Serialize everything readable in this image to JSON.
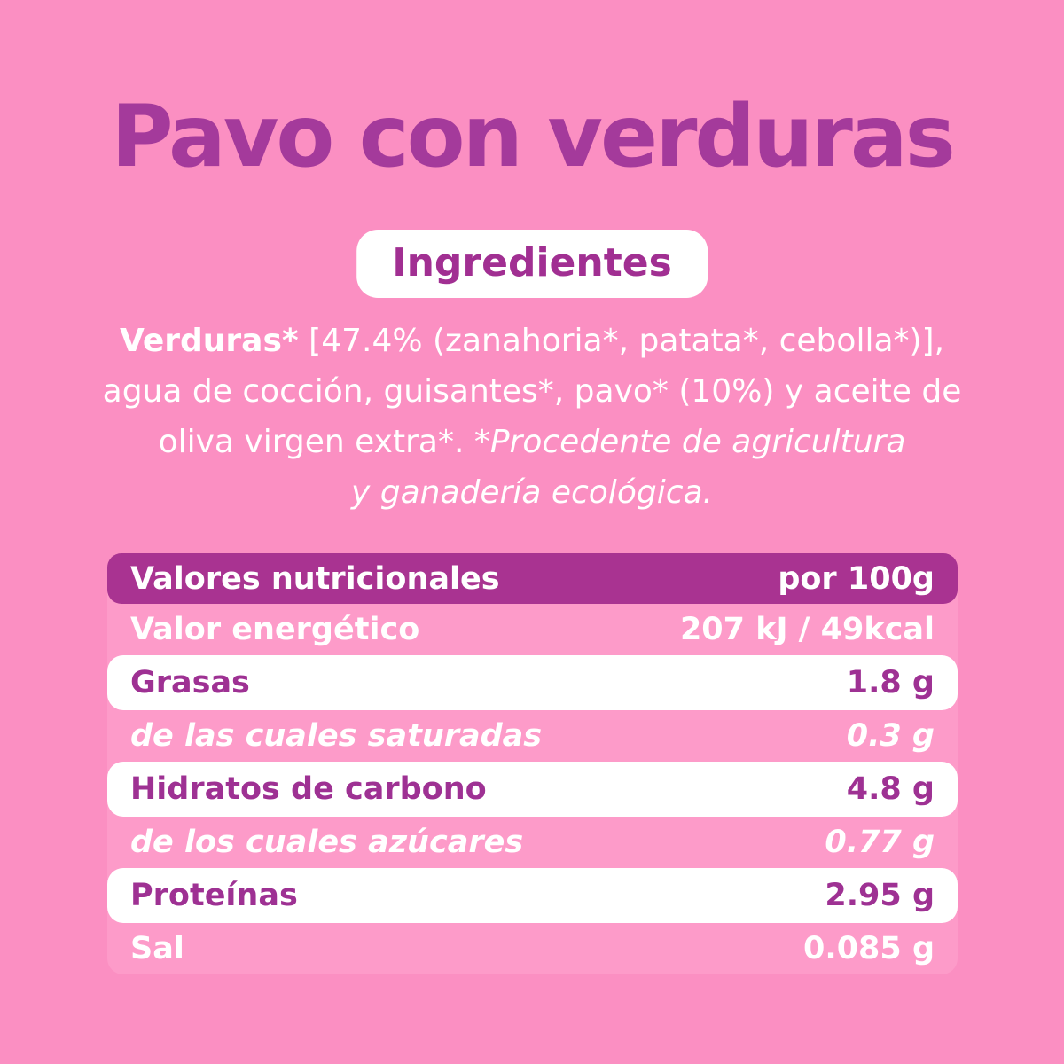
{
  "page": {
    "background_color": "#fb8fc2",
    "title_color": "#a43a9b",
    "header_row_color": "#a93391",
    "table_background_color": "#fd9bc9",
    "white_row_text_color": "#9e3193"
  },
  "title": "Pavo con verduras",
  "ingredients_badge": {
    "label": "Ingredientes"
  },
  "ingredients": {
    "lines": [
      {
        "bold": "Verduras*",
        "normal": " [47.4% (zanahoria*, patata*, cebolla*)],"
      },
      {
        "normal": "agua de cocción, guisantes*, pavo* (10%) y aceite de"
      },
      {
        "normal": "oliva virgen extra*. ",
        "italic": "*Procedente de agricultura"
      },
      {
        "italic": "y ganadería ecológica."
      }
    ]
  },
  "nutrition_table": {
    "header": {
      "label": "Valores nutricionales",
      "value": "por 100g"
    },
    "rows": [
      {
        "label": "Valor energético",
        "value": "207 kJ / 49kcal",
        "style": "pink"
      },
      {
        "label": "Grasas",
        "value": "1.8 g",
        "style": "white"
      },
      {
        "label": "de las cuales saturadas",
        "value": "0.3 g",
        "style": "pink-sub"
      },
      {
        "label": "Hidratos de carbono",
        "value": "4.8 g",
        "style": "white"
      },
      {
        "label": "de los cuales azúcares",
        "value": "0.77 g",
        "style": "pink-sub"
      },
      {
        "label": "Proteínas",
        "value": "2.95 g",
        "style": "white"
      },
      {
        "label": "Sal",
        "value": "0.085 g",
        "style": "pink"
      }
    ]
  }
}
